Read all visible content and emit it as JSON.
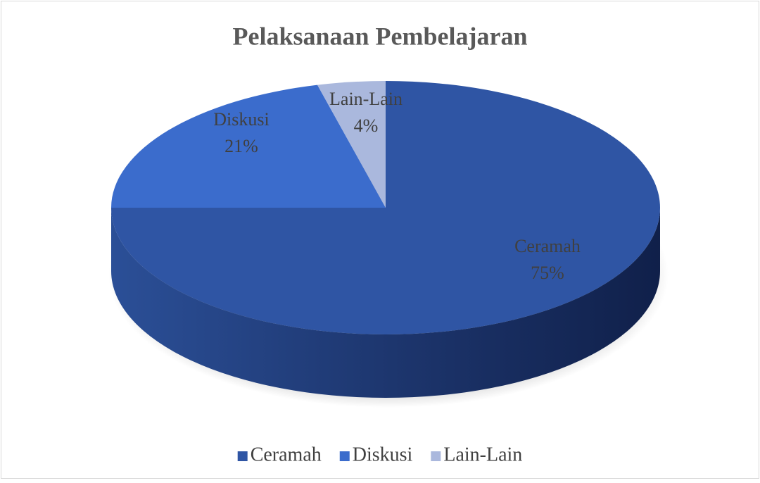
{
  "chart_data": {
    "type": "pie",
    "title": "Pelaksanaan Pembelajaran",
    "categories": [
      "Ceramah",
      "Diskusi",
      "Lain-Lain"
    ],
    "values": [
      75,
      21,
      4
    ],
    "value_labels": [
      "75%",
      "21%",
      "4%"
    ],
    "colors": [
      "#2f55a4",
      "#3b6ccc",
      "#aab8dd"
    ],
    "legend": "bottom"
  }
}
